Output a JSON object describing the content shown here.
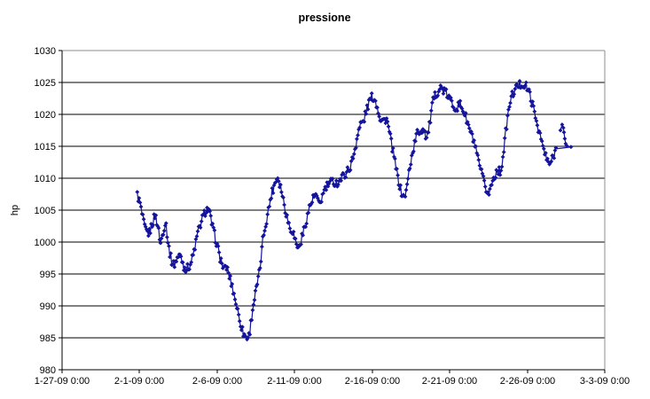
{
  "chart_data": {
    "type": "scatter",
    "title": "pressione",
    "xlabel": "",
    "ylabel": "hp",
    "ylim": [
      980,
      1030
    ],
    "xlim": [
      -5,
      30
    ],
    "grid": "horizontal-major",
    "legend": "none",
    "series_color": "#14149c",
    "gridline_color": "#000000",
    "border_color": "#8c8c8c",
    "marker": "diamond",
    "y_ticks": [
      980,
      985,
      990,
      995,
      1000,
      1005,
      1010,
      1015,
      1020,
      1025,
      1030
    ],
    "x_ticks": [
      {
        "day": -5,
        "label": "1-27-09 0:00"
      },
      {
        "day": 0,
        "label": "2-1-09 0:00"
      },
      {
        "day": 5,
        "label": "2-6-09 0:00"
      },
      {
        "day": 10,
        "label": "2-11-09 0:00"
      },
      {
        "day": 15,
        "label": "2-16-09 0:00"
      },
      {
        "day": 20,
        "label": "2-21-09 0:00"
      },
      {
        "day": 25,
        "label": "2-26-09 0:00"
      },
      {
        "day": 30,
        "label": "3-3-09 0:00"
      }
    ],
    "x_unit": "days since 2-1-09 0:00",
    "series": {
      "name": "pressione",
      "sample_step_days": 0.06,
      "noise_amplitude": 0.35,
      "anchors": [
        [
          -0.15,
          1007.4
        ],
        [
          0.03,
          1006
        ],
        [
          0.15,
          1004.3
        ],
        [
          0.38,
          1001.8
        ],
        [
          0.61,
          1001.3
        ],
        [
          0.83,
          1003
        ],
        [
          1.01,
          1004.3
        ],
        [
          1.18,
          1002.5
        ],
        [
          1.35,
          999.8
        ],
        [
          1.58,
          1002.3
        ],
        [
          1.69,
          1003.2
        ],
        [
          1.86,
          999.4
        ],
        [
          2.04,
          997.2
        ],
        [
          2.21,
          996.4
        ],
        [
          2.44,
          997.6
        ],
        [
          2.66,
          997.9
        ],
        [
          2.84,
          996.2
        ],
        [
          3.06,
          995.8
        ],
        [
          3.29,
          996.6
        ],
        [
          3.47,
          998.1
        ],
        [
          3.75,
          1001.4
        ],
        [
          4.04,
          1003.6
        ],
        [
          4.27,
          1005
        ],
        [
          4.44,
          1005.2
        ],
        [
          4.72,
          1002.2
        ],
        [
          4.95,
          1000
        ],
        [
          5.18,
          997.6
        ],
        [
          5.47,
          995.5
        ],
        [
          5.58,
          996.3
        ],
        [
          5.75,
          995
        ],
        [
          5.98,
          993
        ],
        [
          6.21,
          990.5
        ],
        [
          6.44,
          988
        ],
        [
          6.67,
          985.8
        ],
        [
          6.9,
          985
        ],
        [
          7.07,
          985.4
        ],
        [
          7.3,
          989.7
        ],
        [
          7.52,
          992.5
        ],
        [
          7.75,
          995.5
        ],
        [
          7.98,
          1001
        ],
        [
          8.27,
          1004.5
        ],
        [
          8.5,
          1007.5
        ],
        [
          8.73,
          1009.3
        ],
        [
          8.9,
          1010.3
        ],
        [
          9.12,
          1008.5
        ],
        [
          9.3,
          1006.3
        ],
        [
          9.47,
          1004.3
        ],
        [
          9.7,
          1002.2
        ],
        [
          9.87,
          1001.8
        ],
        [
          10.1,
          999.8
        ],
        [
          10.27,
          999
        ],
        [
          10.5,
          1001
        ],
        [
          10.73,
          1003.2
        ],
        [
          10.96,
          1005.5
        ],
        [
          11.19,
          1006.8
        ],
        [
          11.36,
          1007.5
        ],
        [
          11.53,
          1005.9
        ],
        [
          11.7,
          1006.5
        ],
        [
          11.93,
          1008.2
        ],
        [
          12.16,
          1009
        ],
        [
          12.44,
          1009.5
        ],
        [
          12.73,
          1009.2
        ],
        [
          13.01,
          1010
        ],
        [
          13.3,
          1010.8
        ],
        [
          13.59,
          1011.8
        ],
        [
          13.85,
          1014
        ],
        [
          14.05,
          1016.8
        ],
        [
          14.27,
          1018.6
        ],
        [
          14.45,
          1018.9
        ],
        [
          14.67,
          1021
        ],
        [
          14.9,
          1022.5
        ],
        [
          15.07,
          1022.8
        ],
        [
          15.3,
          1021.5
        ],
        [
          15.53,
          1019.3
        ],
        [
          15.76,
          1019
        ],
        [
          15.93,
          1019.4
        ],
        [
          16.16,
          1016.5
        ],
        [
          16.39,
          1013.5
        ],
        [
          16.62,
          1010.5
        ],
        [
          16.85,
          1008
        ],
        [
          17.02,
          1007
        ],
        [
          17.19,
          1007.8
        ],
        [
          17.42,
          1011.8
        ],
        [
          17.65,
          1014.5
        ],
        [
          17.88,
          1017
        ],
        [
          18.11,
          1017.4
        ],
        [
          18.33,
          1017.8
        ],
        [
          18.51,
          1016.3
        ],
        [
          18.68,
          1018
        ],
        [
          18.91,
          1021.9
        ],
        [
          19.13,
          1023.3
        ],
        [
          19.42,
          1024.2
        ],
        [
          19.71,
          1023.5
        ],
        [
          19.99,
          1022.4
        ],
        [
          20.22,
          1021.5
        ],
        [
          20.45,
          1021
        ],
        [
          20.68,
          1021.6
        ],
        [
          20.91,
          1020.5
        ],
        [
          21.14,
          1018.7
        ],
        [
          21.37,
          1017
        ],
        [
          21.59,
          1015.5
        ],
        [
          21.82,
          1012.8
        ],
        [
          22.05,
          1010.8
        ],
        [
          22.28,
          1008.6
        ],
        [
          22.51,
          1007.5
        ],
        [
          22.74,
          1009.4
        ],
        [
          22.91,
          1010.5
        ],
        [
          23.08,
          1011.5
        ],
        [
          23.25,
          1010.8
        ],
        [
          23.42,
          1013
        ],
        [
          23.65,
          1018
        ],
        [
          23.88,
          1021.9
        ],
        [
          24.11,
          1023.5
        ],
        [
          24.39,
          1024.5
        ],
        [
          24.68,
          1024.8
        ],
        [
          24.96,
          1024.3
        ],
        [
          25.19,
          1023
        ],
        [
          25.48,
          1020.1
        ],
        [
          25.76,
          1017.4
        ],
        [
          26.05,
          1014.6
        ],
        [
          26.28,
          1012.7
        ],
        [
          26.45,
          1012.2
        ],
        [
          26.62,
          1013
        ],
        [
          26.85,
          1014.6
        ]
      ],
      "tail_cluster": [
        [
          27.14,
          1017.5
        ],
        [
          27.25,
          1018.4
        ],
        [
          27.33,
          1017.9
        ],
        [
          27.37,
          1017.2
        ],
        [
          27.42,
          1016.2
        ],
        [
          27.48,
          1015.4
        ],
        [
          27.54,
          1015.1
        ]
      ],
      "gap_segment": {
        "from": [
          26.85,
          1014.6
        ],
        "to": [
          27.82,
          1014.9
        ]
      },
      "final_point": [
        27.82,
        1014.9
      ]
    }
  }
}
